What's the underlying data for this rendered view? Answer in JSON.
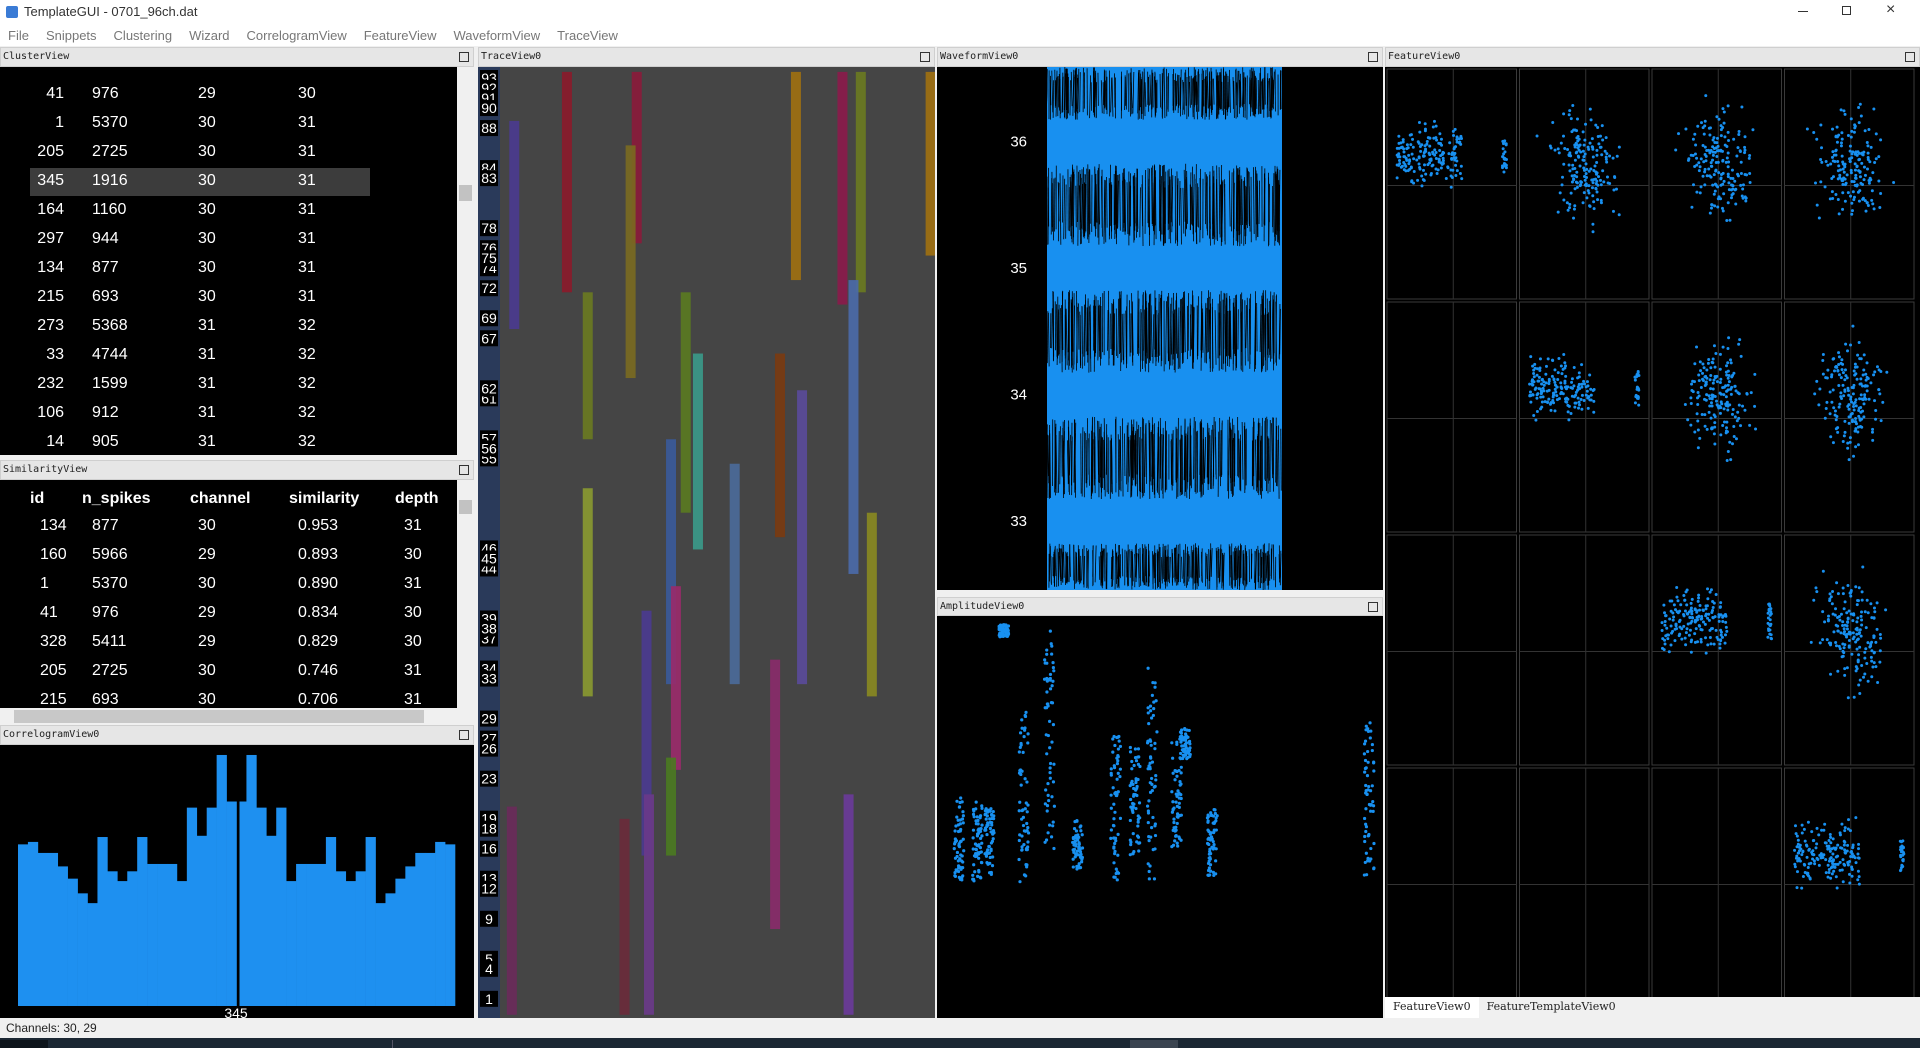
{
  "window": {
    "title": "TemplateGUI - 0701_96ch.dat"
  },
  "menu": [
    "File",
    "Snippets",
    "Clustering",
    "Wizard",
    "CorrelogramView",
    "FeatureView",
    "WaveformView",
    "TraceView"
  ],
  "cluster_view": {
    "title": "ClusterView",
    "selected_row": 3,
    "rows": [
      [
        "41",
        "976",
        "29",
        "30"
      ],
      [
        "1",
        "5370",
        "30",
        "31"
      ],
      [
        "205",
        "2725",
        "30",
        "31"
      ],
      [
        "345",
        "1916",
        "30",
        "31"
      ],
      [
        "164",
        "1160",
        "30",
        "31"
      ],
      [
        "297",
        "944",
        "30",
        "31"
      ],
      [
        "134",
        "877",
        "30",
        "31"
      ],
      [
        "215",
        "693",
        "30",
        "31"
      ],
      [
        "273",
        "5368",
        "31",
        "32"
      ],
      [
        "33",
        "4744",
        "31",
        "32"
      ],
      [
        "232",
        "1599",
        "31",
        "32"
      ],
      [
        "106",
        "912",
        "31",
        "32"
      ],
      [
        "14",
        "905",
        "31",
        "32"
      ]
    ]
  },
  "similarity_view": {
    "title": "SimilarityView",
    "columns": [
      "id",
      "n_spikes",
      "channel",
      "similarity",
      "depth"
    ],
    "rows": [
      [
        "134",
        "877",
        "30",
        "0.953",
        "31"
      ],
      [
        "160",
        "5966",
        "29",
        "0.893",
        "30"
      ],
      [
        "1",
        "5370",
        "30",
        "0.890",
        "31"
      ],
      [
        "41",
        "976",
        "29",
        "0.834",
        "30"
      ],
      [
        "328",
        "5411",
        "29",
        "0.829",
        "30"
      ],
      [
        "205",
        "2725",
        "30",
        "0.746",
        "31"
      ],
      [
        "215",
        "693",
        "30",
        "0.706",
        "31"
      ]
    ]
  },
  "correlogram_view": {
    "title": "CorrelogramView0",
    "label": "345",
    "values": [
      132,
      134,
      125,
      125,
      114,
      104,
      92,
      84,
      138,
      110,
      102,
      110,
      138,
      116,
      116,
      116,
      102,
      162,
      139,
      162,
      205,
      167,
      167,
      205,
      162,
      139,
      162,
      102,
      116,
      116,
      116,
      138,
      110,
      102,
      110,
      138,
      84,
      92,
      104,
      114,
      125,
      125,
      134,
      132
    ]
  },
  "trace_view": {
    "title": "TraceView0",
    "channels": [
      93,
      92,
      91,
      90,
      88,
      84,
      83,
      78,
      76,
      72,
      74,
      75,
      69,
      67,
      61,
      62,
      57,
      55,
      56,
      46,
      44,
      45,
      39,
      37,
      38,
      34,
      33,
      29,
      27,
      26,
      23,
      19,
      18,
      16,
      13,
      12,
      9,
      5,
      4,
      1
    ]
  },
  "waveform_view": {
    "title": "WaveformView0",
    "channels": [
      36,
      35,
      34,
      33
    ]
  },
  "amplitude_view": {
    "title": "AmplitudeView0"
  },
  "feature_view": {
    "title": "FeatureView0",
    "tabs": [
      "FeatureView0",
      "FeatureTemplateView0"
    ]
  },
  "status_bar": {
    "text": "Channels: 30, 29"
  }
}
